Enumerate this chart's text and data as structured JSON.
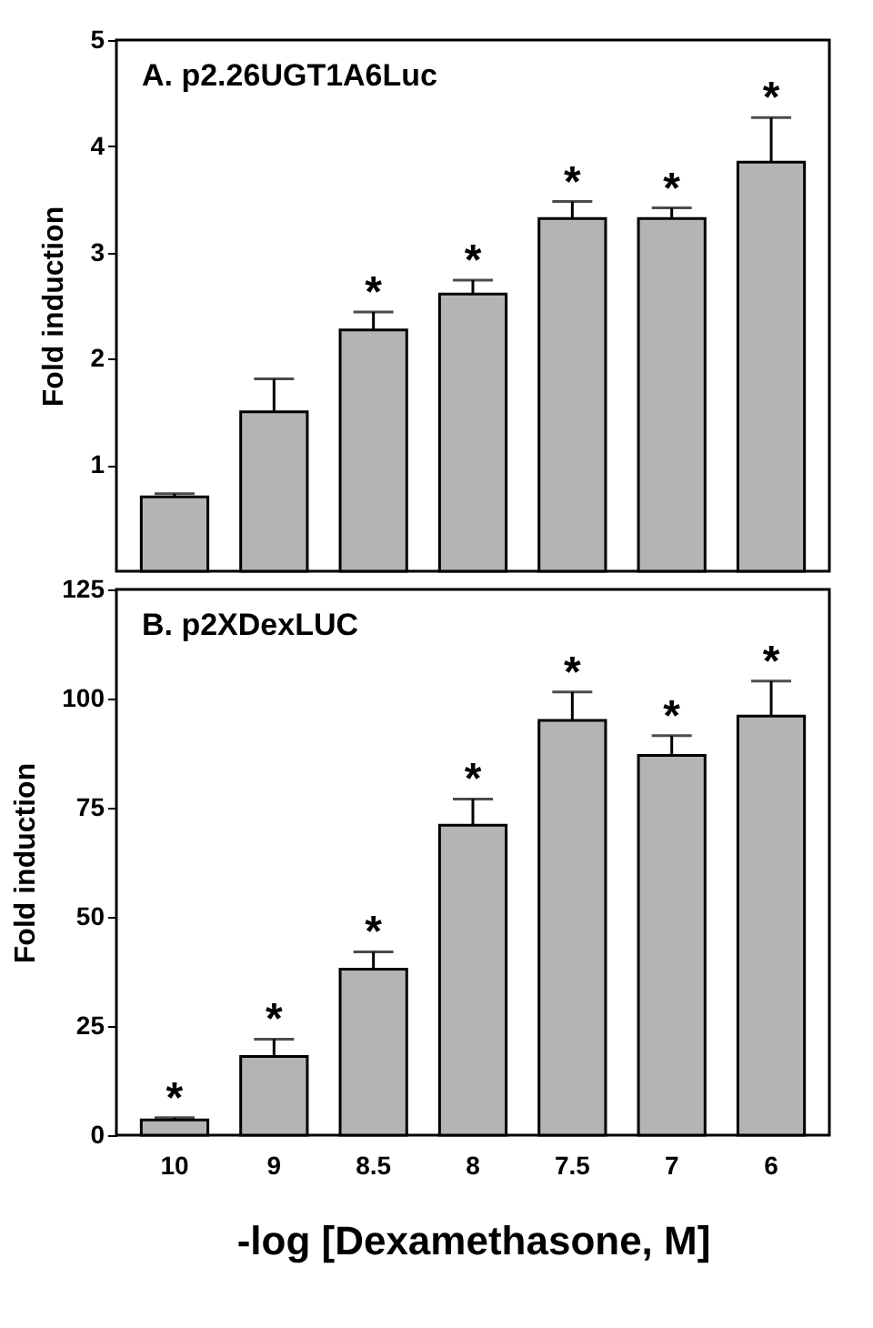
{
  "chart_data": [
    {
      "type": "bar",
      "title": "A. p2.26UGT1A6Luc",
      "ylabel": "Fold induction",
      "categories": [
        "10",
        "9",
        "8.5",
        "8",
        "7.5",
        "7",
        "6"
      ],
      "values": [
        0.7,
        1.5,
        2.27,
        2.61,
        3.32,
        3.32,
        3.85
      ],
      "errors": [
        [
          0.7,
          0.73
        ],
        [
          1.5,
          1.81
        ],
        [
          2.27,
          2.44
        ],
        [
          2.61,
          2.74
        ],
        [
          3.32,
          3.48
        ],
        [
          3.32,
          3.42
        ],
        [
          3.85,
          4.27
        ]
      ],
      "color": "#b4b4b4",
      "ylim": [
        0,
        5
      ],
      "yticks": [
        1,
        2,
        3,
        4,
        5
      ],
      "tick_labels": "y",
      "annotations": [
        {
          "text": "*",
          "x": "8.5",
          "y": 2.44
        },
        {
          "text": "*",
          "x": "8",
          "y": 2.74
        },
        {
          "text": "*",
          "x": "7.5",
          "y": 3.48
        },
        {
          "text": "*",
          "x": "7",
          "y": 3.42
        },
        {
          "text": "*",
          "x": "6",
          "y": 4.27
        }
      ]
    },
    {
      "type": "bar",
      "title": "B. p2XDexLUC",
      "ylabel": "Fold induction",
      "xlabel": "-log [Dexamethasone, M]",
      "categories": [
        "10",
        "9",
        "8.5",
        "8",
        "7.5",
        "7",
        "6"
      ],
      "values": [
        3.5,
        18,
        38,
        71,
        95,
        87,
        96
      ],
      "errors": [
        [
          3.5,
          4
        ],
        [
          18,
          22
        ],
        [
          38,
          42
        ],
        [
          71,
          77
        ],
        [
          95,
          101.5
        ],
        [
          87,
          91.5
        ],
        [
          96,
          104
        ]
      ],
      "color": "#b4b4b4",
      "ylim": [
        0,
        125
      ],
      "yticks": [
        0,
        25,
        50,
        75,
        100,
        125
      ],
      "annotations": [
        {
          "text": "*",
          "x": "10",
          "y": 4
        },
        {
          "text": "*",
          "x": "9",
          "y": 22
        },
        {
          "text": "*",
          "x": "8.5",
          "y": 42
        },
        {
          "text": "*",
          "x": "8",
          "y": 77
        },
        {
          "text": "*",
          "x": "7.5",
          "y": 101.5
        },
        {
          "text": "*",
          "x": "7",
          "y": 91.5
        },
        {
          "text": "*",
          "x": "6",
          "y": 104
        }
      ]
    }
  ]
}
